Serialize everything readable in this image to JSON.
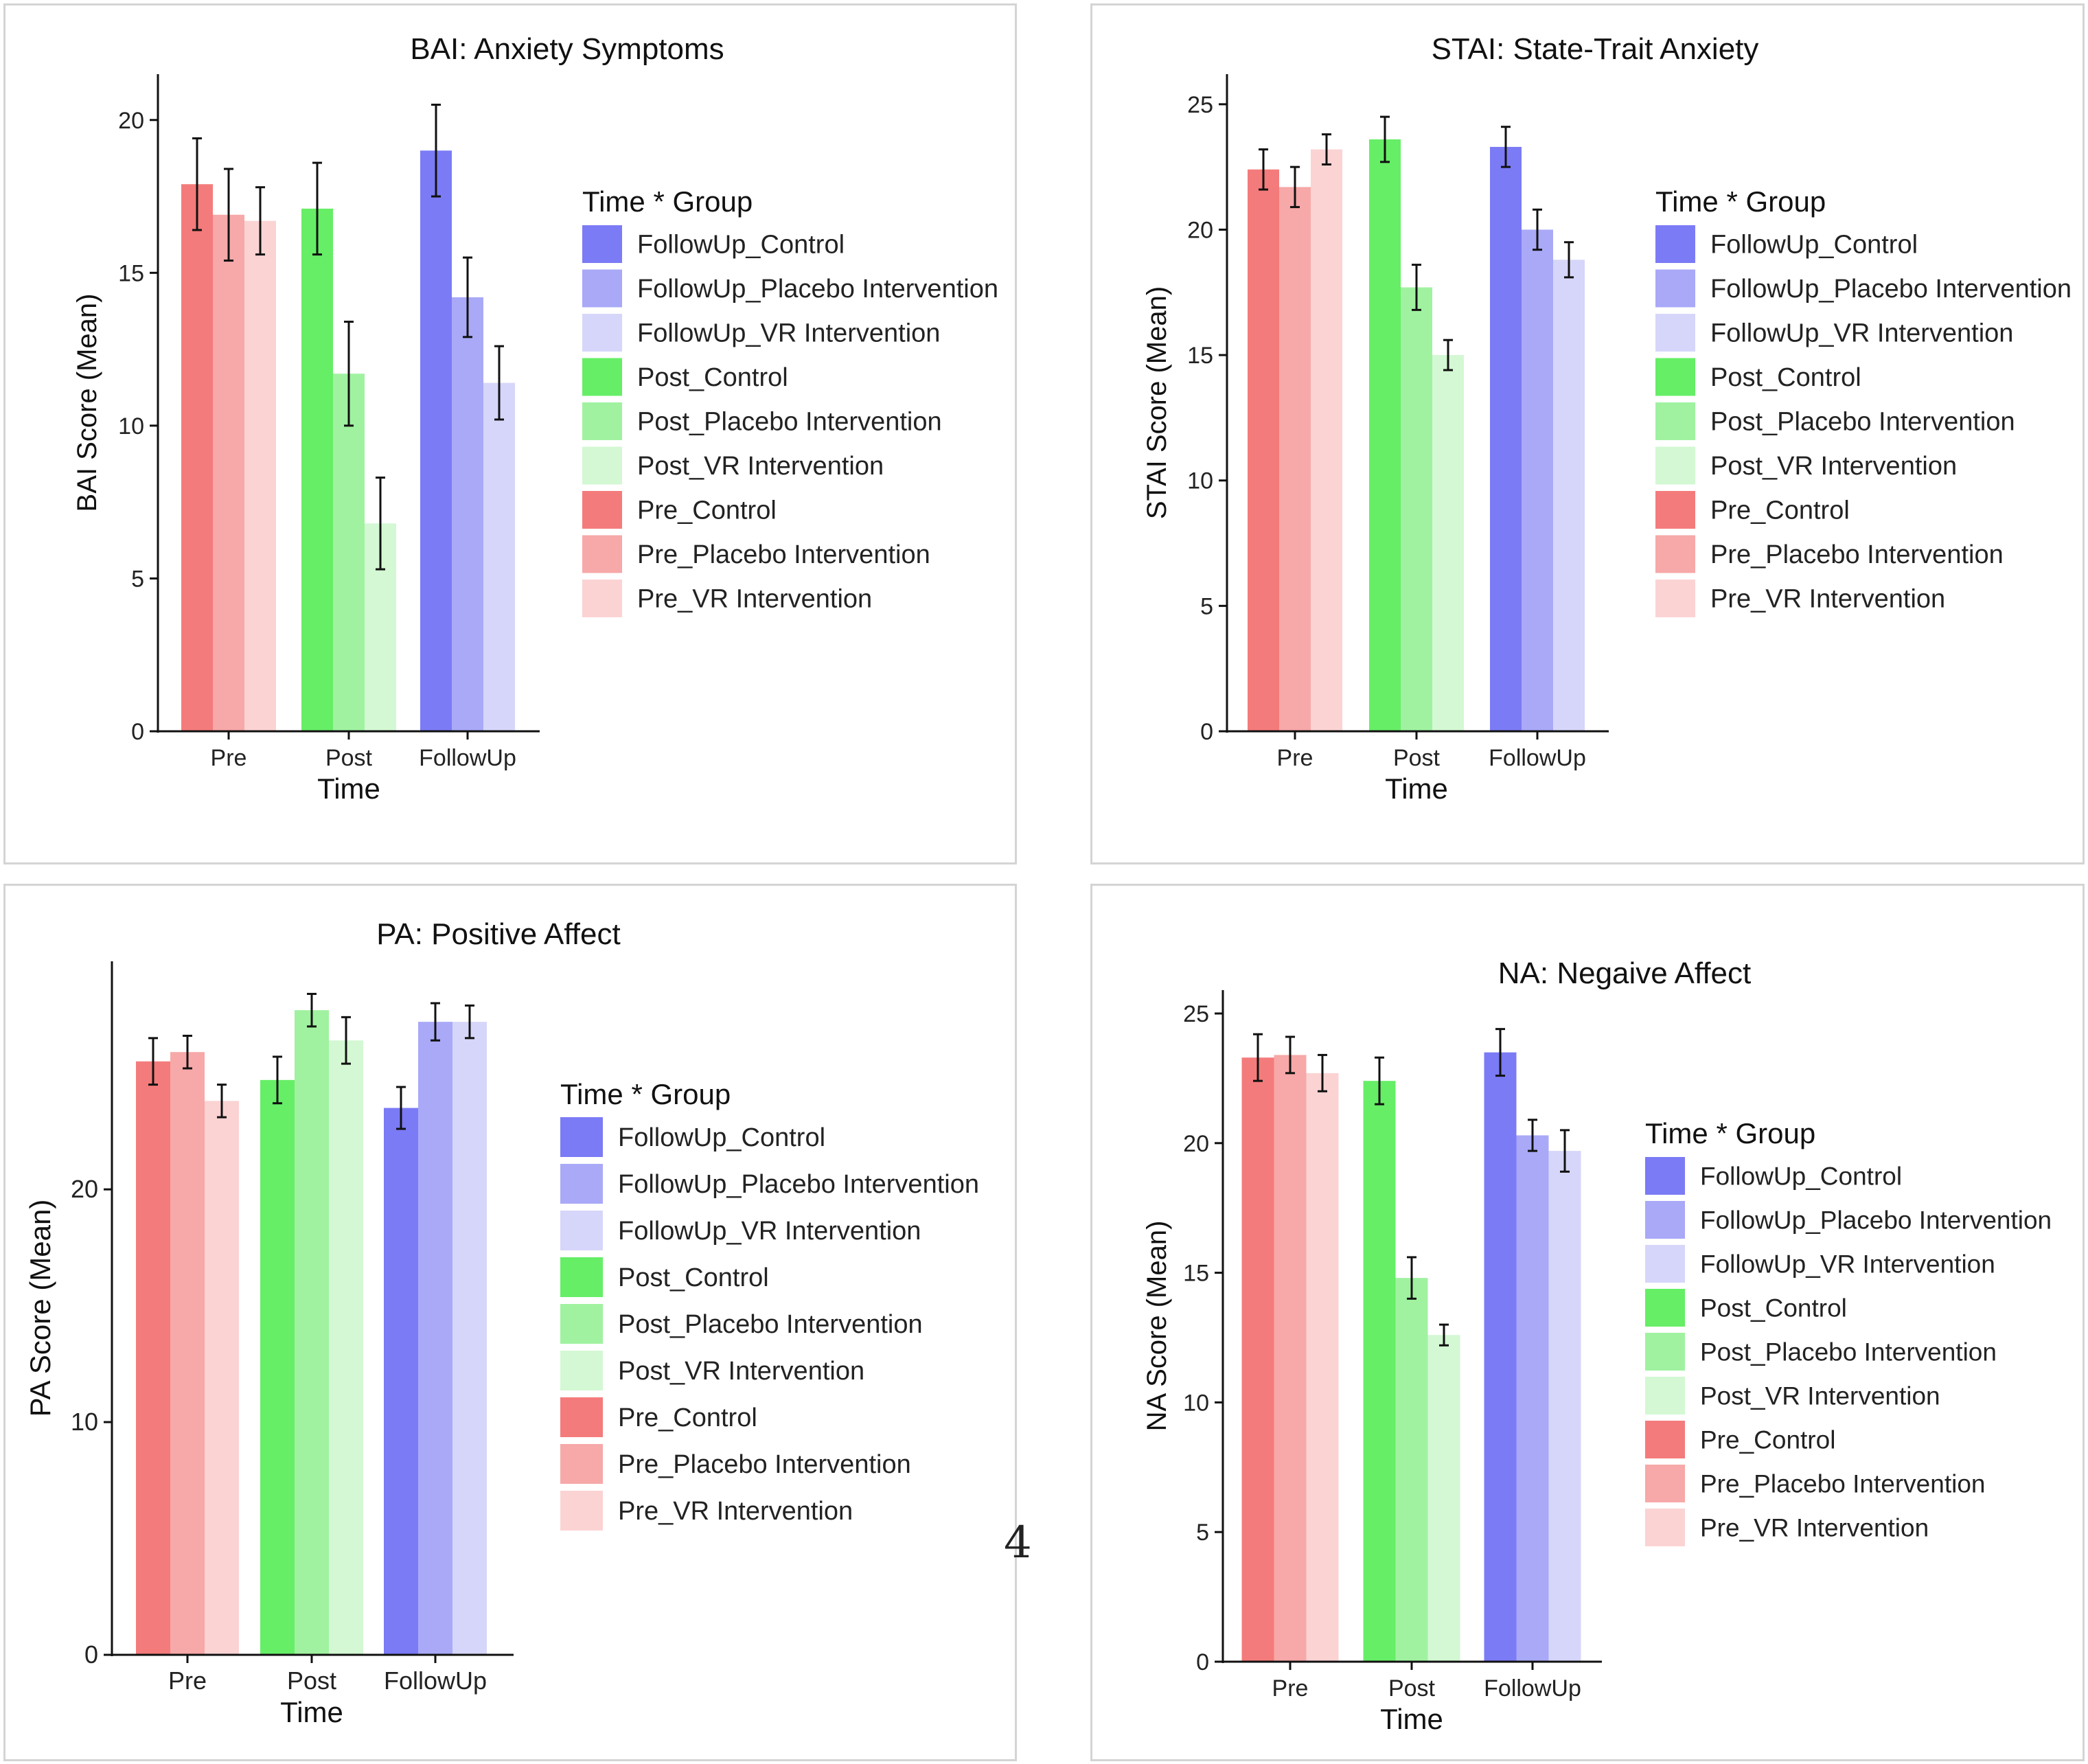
{
  "page_number": "4",
  "legend_title": "Time * Group",
  "legend_labels": [
    "FollowUp_Control",
    "FollowUp_Placebo Intervention",
    "FollowUp_VR Intervention",
    "Post_Control",
    "Post_Placebo Intervention",
    "Post_VR Intervention",
    "Pre_Control",
    "Pre_Placebo Intervention",
    "Pre_VR Intervention"
  ],
  "colors": {
    "FollowUp": [
      "#7b7bf6",
      "#a9a9f8",
      "#d6d6fa"
    ],
    "Post": [
      "#66ee66",
      "#a0f2a0",
      "#d3f8d3"
    ],
    "Pre": [
      "#f47b7b",
      "#f7a8a8",
      "#fbd3d3"
    ]
  },
  "chart_data": [
    {
      "type": "bar",
      "title": "BAI: Anxiety Symptoms",
      "xlabel": "Time",
      "ylabel": "BAI Score (Mean)",
      "categories": [
        "Pre",
        "Post",
        "FollowUp"
      ],
      "groups": [
        "Control",
        "Placebo Intervention",
        "VR Intervention"
      ],
      "yticks": [
        0,
        5,
        10,
        15,
        20
      ],
      "ylim": [
        0,
        21.5
      ],
      "series": [
        {
          "name": "Control",
          "values": [
            17.9,
            17.1,
            19.0
          ],
          "errors": [
            1.5,
            1.5,
            1.5
          ]
        },
        {
          "name": "Placebo Intervention",
          "values": [
            16.9,
            11.7,
            14.2
          ],
          "errors": [
            1.5,
            1.7,
            1.3
          ]
        },
        {
          "name": "VR Intervention",
          "values": [
            16.7,
            6.8,
            11.4
          ],
          "errors": [
            1.1,
            1.5,
            1.2
          ]
        }
      ]
    },
    {
      "type": "bar",
      "title": "STAI: State-Trait Anxiety",
      "xlabel": "Time",
      "ylabel": "STAI Score (Mean)",
      "categories": [
        "Pre",
        "Post",
        "FollowUp"
      ],
      "groups": [
        "Control",
        "Placebo Intervention",
        "VR Intervention"
      ],
      "yticks": [
        0,
        5,
        10,
        15,
        20,
        25
      ],
      "ylim": [
        0,
        26.2
      ],
      "series": [
        {
          "name": "Control",
          "values": [
            22.4,
            23.6,
            23.3
          ],
          "errors": [
            0.8,
            0.9,
            0.8
          ]
        },
        {
          "name": "Placebo Intervention",
          "values": [
            21.7,
            17.7,
            20.0
          ],
          "errors": [
            0.8,
            0.9,
            0.8
          ]
        },
        {
          "name": "VR Intervention",
          "values": [
            23.2,
            15.0,
            18.8
          ],
          "errors": [
            0.6,
            0.6,
            0.7
          ]
        }
      ]
    },
    {
      "type": "bar",
      "title": "PA: Positive Affect",
      "xlabel": "Time",
      "ylabel": "PA Score (Mean)",
      "categories": [
        "Pre",
        "Post",
        "FollowUp"
      ],
      "groups": [
        "Control",
        "Placebo Intervention",
        "VR Intervention"
      ],
      "yticks": [
        0,
        10,
        20
      ],
      "ylim": [
        0,
        29.8
      ],
      "series": [
        {
          "name": "Control",
          "values": [
            25.5,
            24.7,
            23.5
          ],
          "errors": [
            1.0,
            1.0,
            0.9
          ]
        },
        {
          "name": "Placebo Intervention",
          "values": [
            25.9,
            27.7,
            27.2
          ],
          "errors": [
            0.7,
            0.7,
            0.8
          ]
        },
        {
          "name": "VR Intervention",
          "values": [
            23.8,
            26.4,
            27.2
          ],
          "errors": [
            0.7,
            1.0,
            0.7
          ]
        }
      ]
    },
    {
      "type": "bar",
      "title": "NA: Negaive Affect",
      "xlabel": "Time",
      "ylabel": "NA Score (Mean)",
      "categories": [
        "Pre",
        "Post",
        "FollowUp"
      ],
      "groups": [
        "Control",
        "Placebo Intervention",
        "VR Intervention"
      ],
      "yticks": [
        0,
        5,
        10,
        15,
        20,
        25
      ],
      "ylim": [
        0,
        25.9
      ],
      "series": [
        {
          "name": "Control",
          "values": [
            23.3,
            22.4,
            23.5
          ],
          "errors": [
            0.9,
            0.9,
            0.9
          ]
        },
        {
          "name": "Placebo Intervention",
          "values": [
            23.4,
            14.8,
            20.3
          ],
          "errors": [
            0.7,
            0.8,
            0.6
          ]
        },
        {
          "name": "VR Intervention",
          "values": [
            22.7,
            12.6,
            19.7
          ],
          "errors": [
            0.7,
            0.4,
            0.8
          ]
        }
      ]
    }
  ]
}
